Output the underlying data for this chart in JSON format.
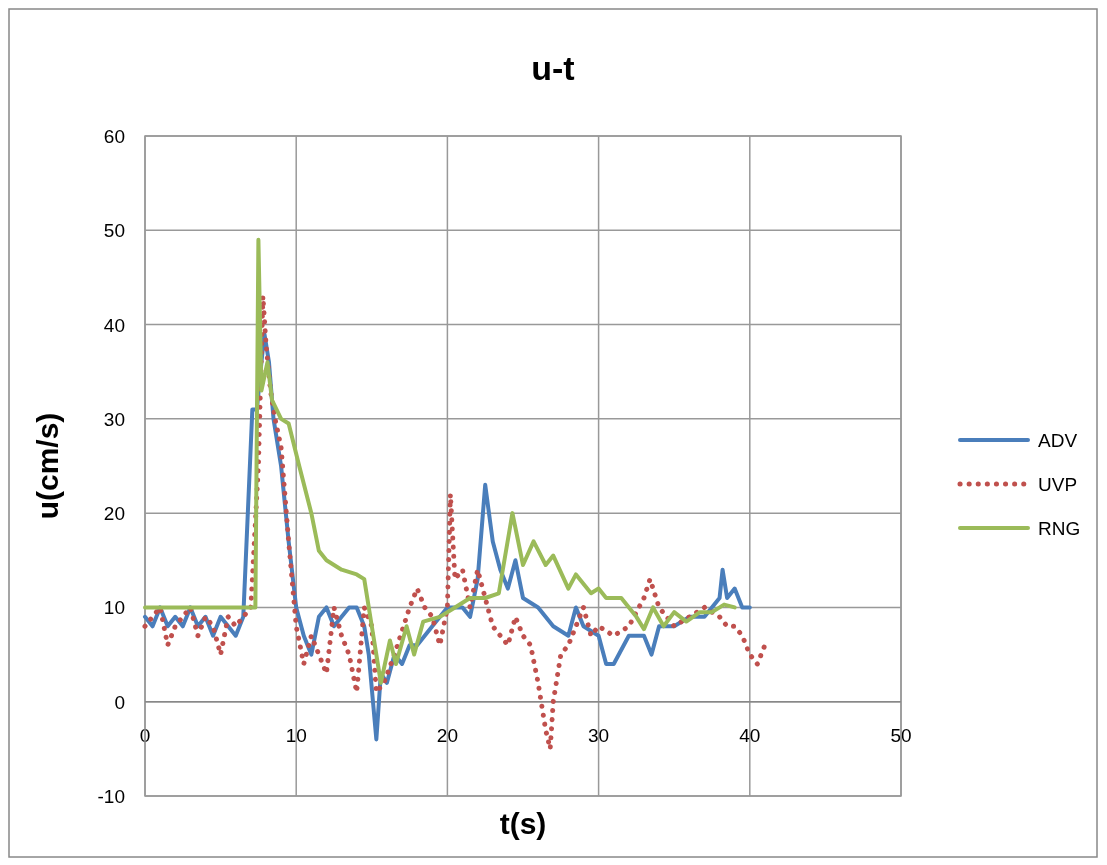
{
  "chart_data": {
    "type": "line",
    "title": "u-t",
    "xlabel": "t(s)",
    "ylabel": "u(cm/s)",
    "xlim": [
      0,
      50
    ],
    "xticks": [
      0,
      10,
      20,
      30,
      40,
      50
    ],
    "ylim": [
      -10,
      60
    ],
    "yticks": [
      -10,
      0,
      10,
      20,
      30,
      40,
      50,
      60
    ],
    "grid": true,
    "legend": "right",
    "series": [
      {
        "name": "ADV",
        "color": "#4a7ebb",
        "line_style": "solid",
        "x": [
          0,
          0.5,
          1,
          1.5,
          2,
          2.5,
          3,
          3.5,
          4,
          4.5,
          5,
          5.5,
          6,
          6.5,
          6.8,
          7.1,
          7.4,
          7.7,
          7.9,
          8.2,
          8.5,
          9,
          9.5,
          10,
          10.5,
          11,
          11.5,
          12,
          12.5,
          13,
          13.5,
          14,
          14.5,
          14.8,
          15.3,
          15.6,
          16,
          16.5,
          17,
          17.5,
          18,
          19,
          20,
          21,
          21.5,
          22,
          22.5,
          23,
          23.5,
          24,
          24.5,
          25,
          26,
          27,
          28,
          28.5,
          29,
          30,
          30.5,
          31,
          32,
          33,
          33.5,
          34,
          35,
          36,
          37,
          38,
          38.2,
          38.5,
          39,
          39.5,
          40
        ],
        "values": [
          9,
          8,
          10,
          8,
          9,
          8,
          10,
          8,
          9,
          7,
          9,
          8,
          7,
          9,
          20,
          31,
          31,
          36,
          39,
          36,
          30,
          25,
          17,
          10,
          7,
          5,
          9,
          10,
          8,
          9,
          10,
          10,
          8,
          5,
          -4,
          3,
          2,
          5,
          4,
          6,
          6,
          8,
          10,
          10,
          9,
          13,
          23,
          17,
          14,
          12,
          15,
          11,
          10,
          8,
          7,
          10,
          8,
          7,
          4,
          4,
          7,
          7,
          5,
          8,
          8,
          9,
          9,
          11,
          14,
          11,
          12,
          10,
          10
        ]
      },
      {
        "name": "UVP",
        "color": "#c0504d",
        "line_style": "dotted",
        "x": [
          0,
          0.5,
          1,
          1.5,
          2,
          2.5,
          3,
          3.5,
          4,
          4.5,
          5,
          5.5,
          6,
          6.5,
          7,
          7.5,
          7.8,
          8,
          8.3,
          8.6,
          9,
          9.5,
          10,
          10.5,
          11,
          11.5,
          12,
          12.5,
          13,
          13.5,
          14,
          14.5,
          15,
          15.3,
          15.8,
          16.5,
          17.5,
          18,
          18.5,
          19,
          19.5,
          20,
          20.2,
          20.5,
          21,
          21.5,
          22,
          22.5,
          23,
          24,
          24.5,
          25,
          25.5,
          26,
          26.5,
          26.8,
          27,
          27.5,
          28,
          29,
          29.5,
          30,
          31,
          32,
          33,
          33.4,
          34,
          35,
          36,
          37,
          38,
          38.5,
          39,
          39.5,
          40,
          40.5,
          41
        ],
        "values": [
          8,
          9,
          10,
          6,
          8,
          9,
          10,
          7,
          9,
          8,
          5,
          9,
          8,
          9,
          10,
          25,
          43,
          38,
          33,
          30,
          27,
          17,
          8,
          4,
          7,
          5,
          3,
          10,
          7,
          5,
          1,
          10,
          8,
          1,
          2,
          5,
          10,
          12,
          10,
          9,
          6,
          10,
          22,
          13,
          14,
          10,
          14,
          11,
          8,
          6,
          9,
          7,
          6,
          2,
          -3,
          -5,
          0,
          5,
          6,
          10,
          7,
          8,
          7,
          8,
          11,
          13,
          10,
          8,
          9,
          10,
          9,
          8,
          8,
          7,
          5,
          4,
          6
        ]
      },
      {
        "name": "RNG",
        "color": "#9bbb59",
        "line_style": "solid",
        "x": [
          0,
          7.3,
          7.5,
          7.7,
          8.1,
          8.4,
          9,
          9.5,
          10.2,
          11,
          11.5,
          12,
          13,
          14,
          14.5,
          15,
          15.6,
          16.2,
          16.6,
          17.3,
          17.8,
          18.4,
          19.5,
          20.5,
          21.5,
          22.5,
          23.4,
          24.3,
          25,
          25.7,
          26.5,
          27,
          28,
          28.5,
          29.5,
          30,
          30.5,
          31.5,
          32.5,
          33,
          33.6,
          34.3,
          35,
          35.8,
          36.7,
          37.5,
          38.3,
          39
        ],
        "values": [
          10,
          10,
          49,
          33,
          36,
          32,
          30,
          29.5,
          25,
          20,
          16,
          15,
          14,
          13.5,
          13,
          8,
          2,
          6.5,
          4,
          8,
          5,
          8.5,
          9,
          10,
          11,
          11,
          11.5,
          20,
          14.5,
          17,
          14.5,
          15.5,
          12,
          13.5,
          11.5,
          12,
          11,
          11,
          9,
          7.7,
          10,
          8,
          9.5,
          8.5,
          9.5,
          9.5,
          10.3,
          10
        ]
      }
    ]
  }
}
